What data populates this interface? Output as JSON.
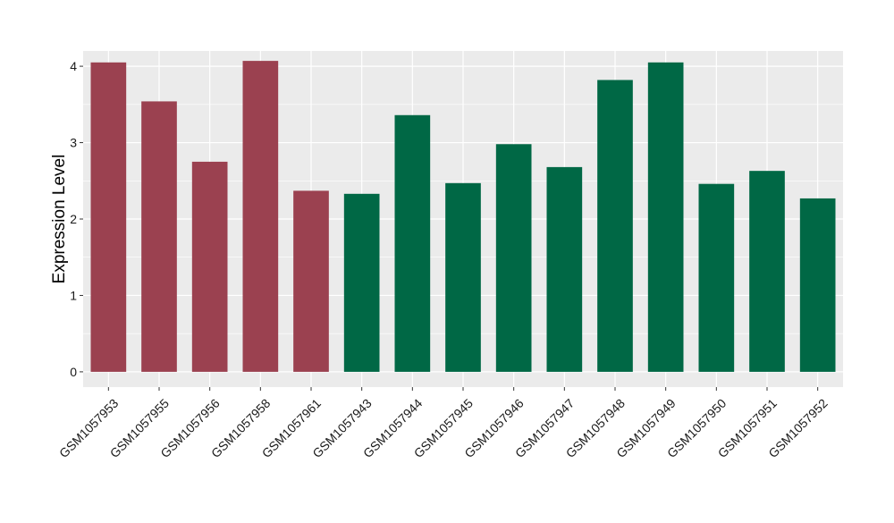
{
  "chart_data": {
    "type": "bar",
    "title": "",
    "xlabel": "",
    "ylabel": "Expression Level",
    "ylim": [
      -0.2,
      4.2
    ],
    "yticks": [
      0,
      1,
      2,
      3,
      4
    ],
    "grid": true,
    "legend": "none",
    "categories": [
      "GSM1057953",
      "GSM1057955",
      "GSM1057956",
      "GSM1057958",
      "GSM1057961",
      "GSM1057943",
      "GSM1057944",
      "GSM1057945",
      "GSM1057946",
      "GSM1057947",
      "GSM1057948",
      "GSM1057949",
      "GSM1057950",
      "GSM1057951",
      "GSM1057952"
    ],
    "values": [
      4.05,
      3.54,
      2.75,
      4.07,
      2.37,
      2.33,
      3.36,
      2.47,
      2.98,
      2.68,
      3.82,
      4.05,
      2.46,
      2.63,
      2.27
    ],
    "groups": [
      0,
      0,
      0,
      0,
      0,
      1,
      1,
      1,
      1,
      1,
      1,
      1,
      1,
      1,
      1
    ],
    "group_colors": [
      "#9b4150",
      "#006845"
    ],
    "panel_color": "#ebebeb",
    "grid_color": "#ffffff"
  }
}
